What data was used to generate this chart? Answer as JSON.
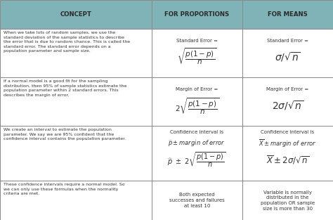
{
  "header_bg": "#7fb3b8",
  "cell_bg": "#ffffff",
  "border_color": "#888888",
  "text_color": "#333333",
  "fig_width": 4.74,
  "fig_height": 3.13,
  "headers": [
    "CONCEPT",
    "FOR PROPORTIONS",
    "FOR MEANS"
  ],
  "col_bounds": [
    0.0,
    0.455,
    0.728,
    1.0
  ],
  "row_bounds": [
    1.0,
    0.868,
    0.648,
    0.428,
    0.178,
    0.0
  ],
  "row1_concept": "When we take lots of random samples, we use the\nstandard deviation of the sample statistics to describe\nthe error that is due to random chance. This is called the\nstandard error. The standard error depends on a\npopulation parameter and sample size.",
  "row2_concept": "If a normal model is a good fit for the sampling\ndistribution, then 95% of sample statistics estimate the\npopulation parameter within 2 standard errors. This\ndescribes the margin of error.",
  "row3_concept": "We create an interval to estimate the population\nparameter. We say we are 95% confident that the\nconfidence interval contains the population parameter.",
  "row4_concept": "These confidence intervals require a normal model. So\nwe can only use these formulas when the normality\ncriteria are met.",
  "row4_prop": "Both expected\nsuccesses and failures\nat least 10",
  "row4_means": "Variable is normally\ndistributed in the\npopulation OR sample\nsize is more than 30"
}
